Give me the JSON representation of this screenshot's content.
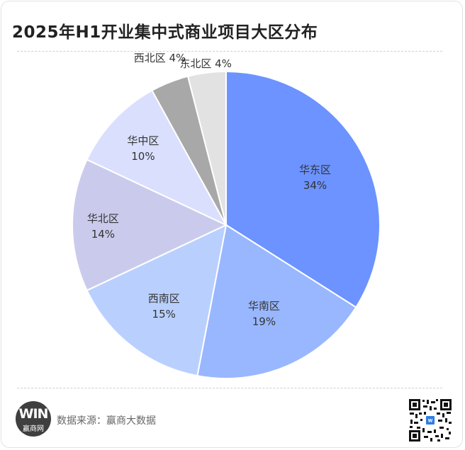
{
  "title": "2025年H1开业集中式商业项目大区分布",
  "chart_data": {
    "type": "pie",
    "title": "2025年H1开业集中式商业项目大区分布",
    "slices": [
      {
        "name": "华东区",
        "value": 34,
        "label": "34%",
        "color": "#6c93ff"
      },
      {
        "name": "华南区",
        "value": 19,
        "label": "19%",
        "color": "#99b7ff"
      },
      {
        "name": "西南区",
        "value": 15,
        "label": "15%",
        "color": "#b9d0ff"
      },
      {
        "name": "华北区",
        "value": 14,
        "label": "14%",
        "color": "#cacbec"
      },
      {
        "name": "华中区",
        "value": 10,
        "label": "10%",
        "color": "#dadffd"
      },
      {
        "name": "西北区",
        "value": 4,
        "label": "4%",
        "color": "#a8a8a8"
      },
      {
        "name": "东北区",
        "value": 4,
        "label": "4%",
        "color": "#e2e2e2"
      }
    ],
    "start": "12 o'clock",
    "direction": "clockwise",
    "legend": "none"
  },
  "footer": {
    "logo_mark": "WIN",
    "logo_text": "赢商网",
    "source": "数据来源：赢商大数据"
  },
  "icons": {
    "logo": "winshang-logo-icon",
    "qr": "qr-code-icon"
  }
}
